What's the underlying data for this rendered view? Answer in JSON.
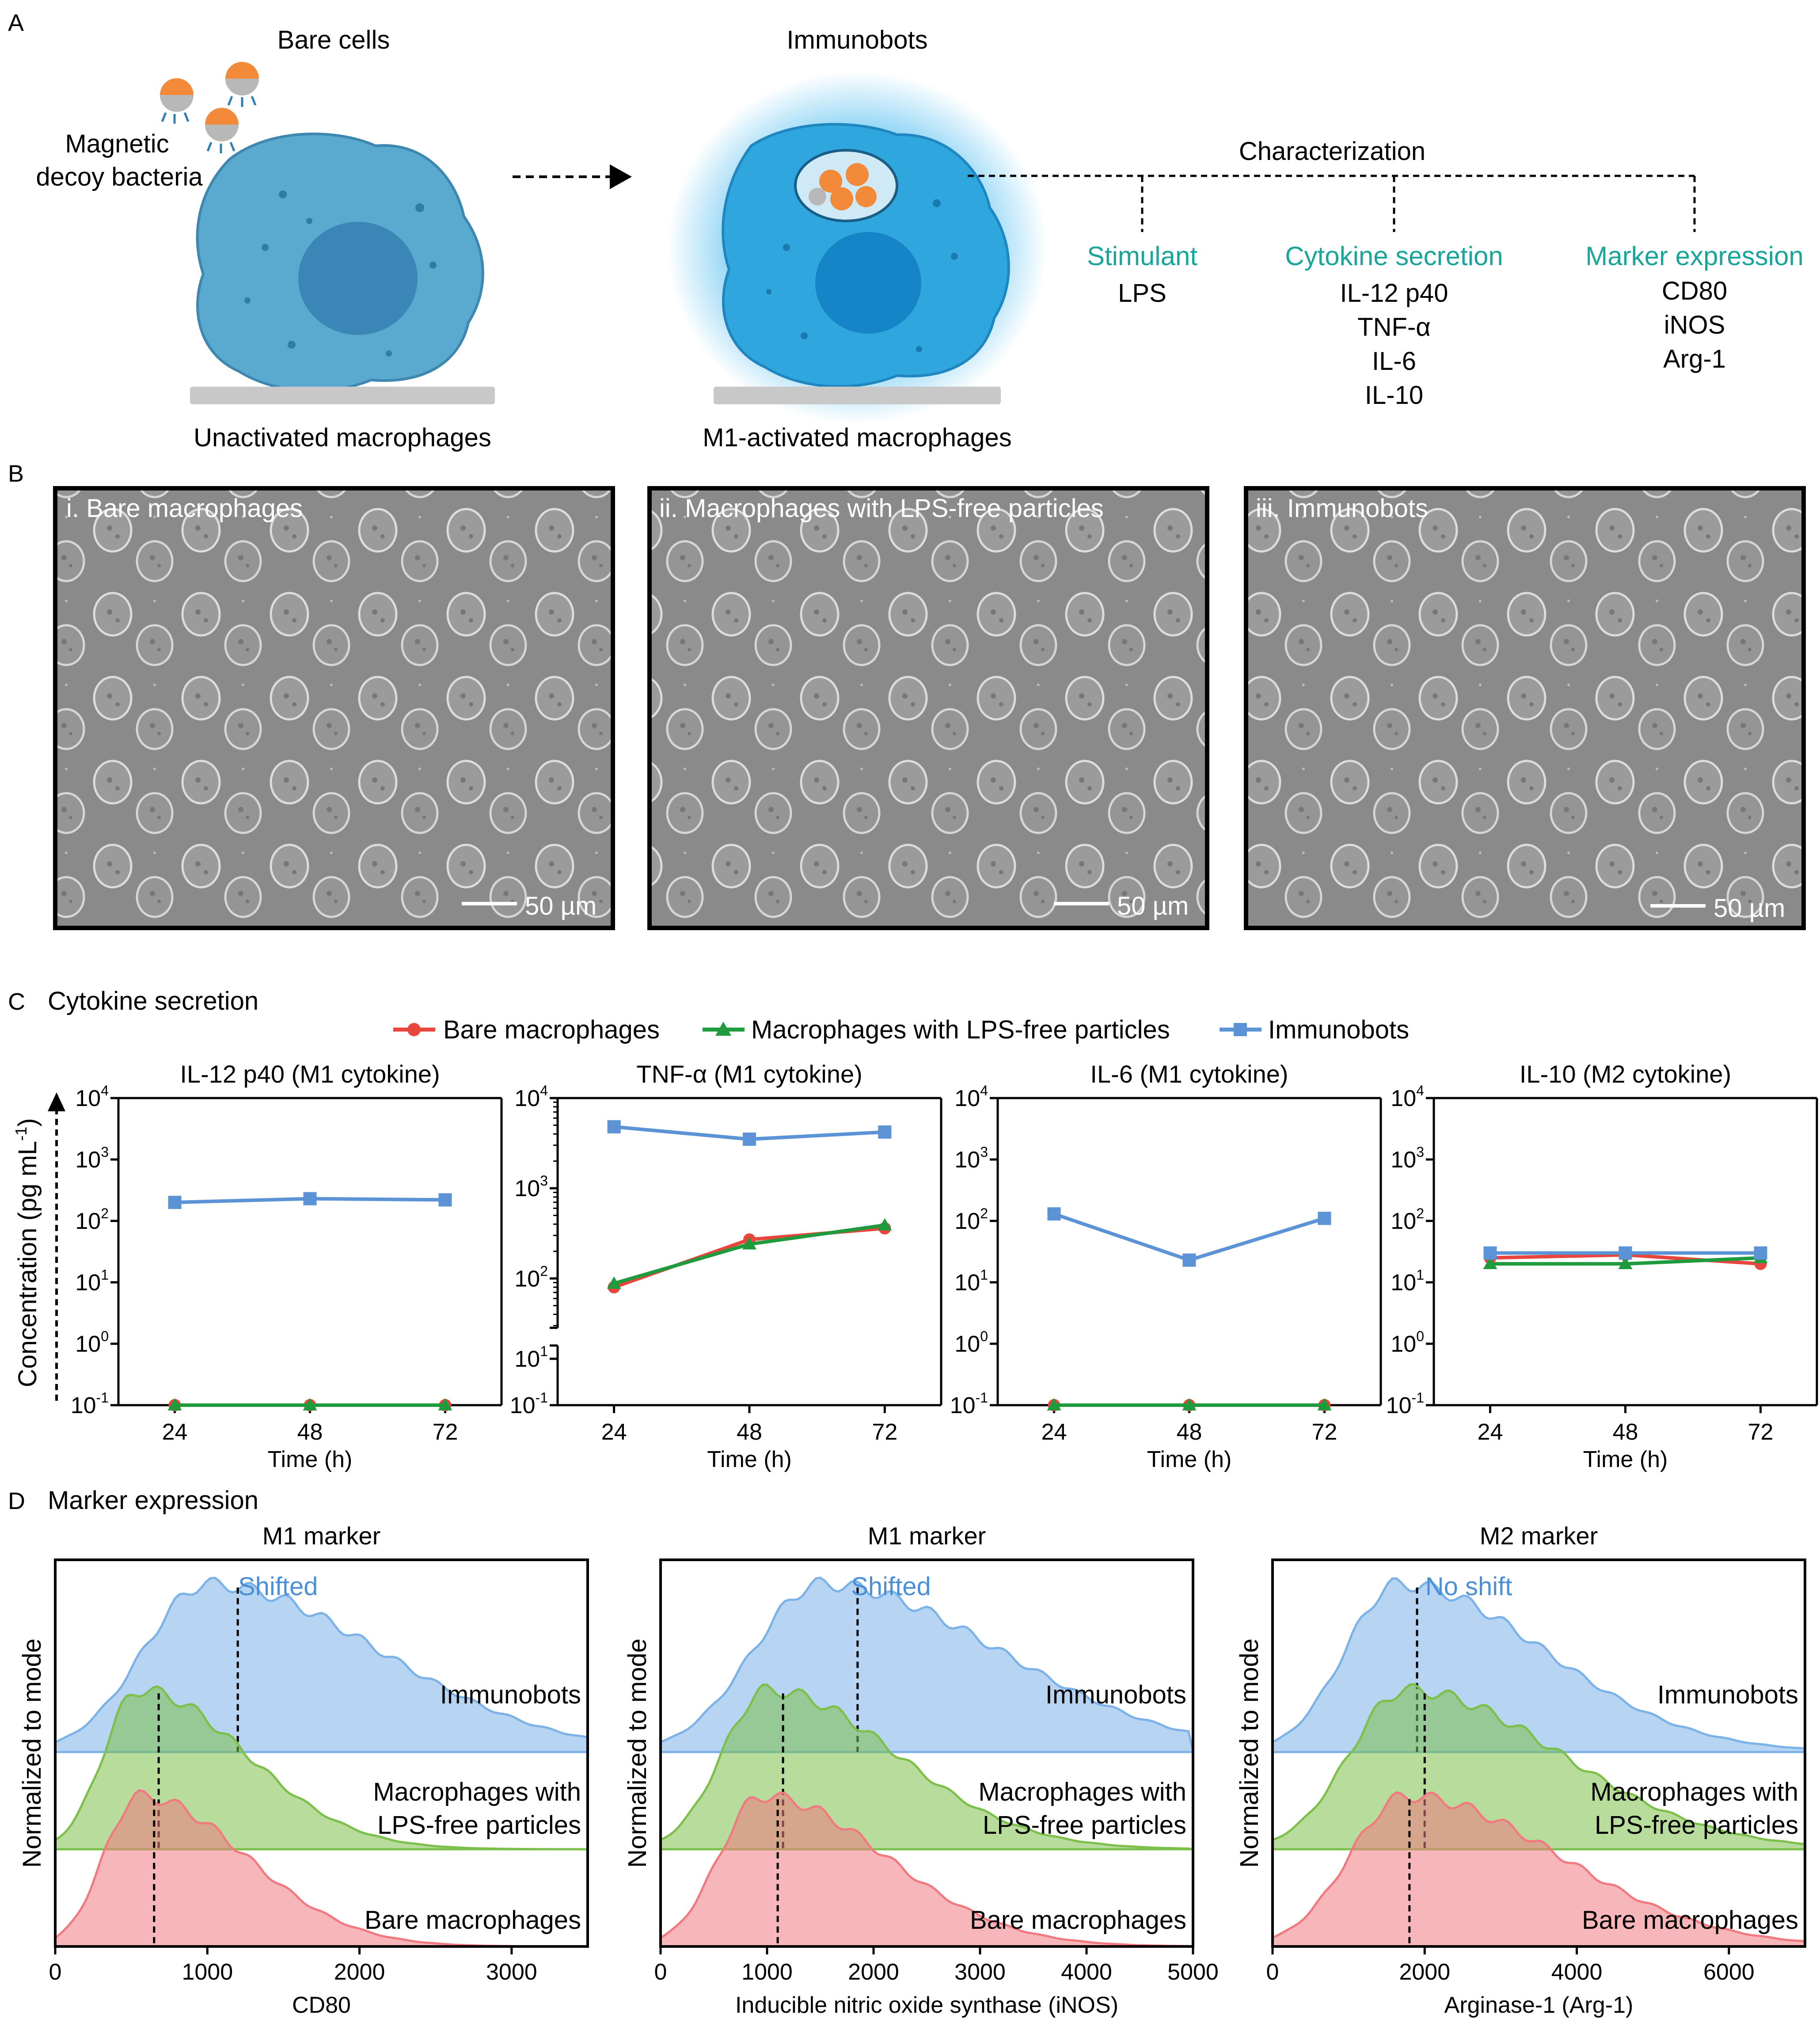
{
  "panelA": {
    "letter": "A",
    "bare_cells": "Bare cells",
    "decoy_line1": "Magnetic",
    "decoy_line2": "decoy bacteria",
    "immunobots": "Immunobots",
    "unactivated": "Unactivated macrophages",
    "activated": "M1-activated macrophages",
    "characterization": "Characterization",
    "stimulant_title": "Stimulant",
    "stimulant_items": [
      "LPS"
    ],
    "cytokine_title": "Cytokine secretion",
    "cytokine_items": [
      "IL-12 p40",
      "TNF-α",
      "IL-6",
      "IL-10"
    ],
    "marker_title": "Marker expression",
    "marker_items": [
      "CD80",
      "iNOS",
      "Arg-1"
    ],
    "colors": {
      "teal": "#1aa59a",
      "cell_bare": "#5aa9cf",
      "cell_active": "#2fa6dd"
    }
  },
  "panelB": {
    "letter": "B",
    "images": [
      {
        "caption": "i. Bare macrophages",
        "scale": "50 µm"
      },
      {
        "caption": "ii. Macrophages with LPS-free particles",
        "scale": "50 µm"
      },
      {
        "caption": "iii. Immunobots",
        "scale": "50 µm"
      }
    ]
  },
  "panelC": {
    "letter": "C",
    "title": "Cytokine secretion",
    "ylabel": "Concentration (pg mL-1)",
    "ylabel_main": "Concentration (pg mL",
    "ylabel_exp": "-1",
    "ylabel_close": ")",
    "xlabel": "Time (h)",
    "legend": [
      "Bare macrophages",
      "Macrophages with LPS-free particles",
      "Immunobots"
    ],
    "ytick_base": "10",
    "break_tick_exponents": [
      "1",
      "-1"
    ],
    "series_colors": [
      "#e8453c",
      "#1f9a3c",
      "#5b93d6"
    ]
  },
  "chart_data": [
    {
      "type": "line",
      "title": "IL-12 p40 (M1 cytokine)",
      "yscale": "log",
      "x": [
        24,
        48,
        72
      ],
      "ylim": [
        0.1,
        10000
      ],
      "yticks_exp": [
        -1,
        0,
        1,
        2,
        3,
        4
      ],
      "series": [
        {
          "name": "Bare macrophages",
          "values": [
            0.1,
            0.1,
            0.1
          ]
        },
        {
          "name": "Macrophages with LPS-free particles",
          "values": [
            0.1,
            0.1,
            0.1
          ]
        },
        {
          "name": "Immunobots",
          "values": [
            200,
            230,
            220
          ]
        }
      ]
    },
    {
      "type": "line",
      "title": "TNF-α (M1 cytokine)",
      "yscale": "log",
      "axis_break": true,
      "x": [
        24,
        48,
        72
      ],
      "ylim": [
        30,
        10000
      ],
      "yticks_exp": [
        2,
        3,
        4
      ],
      "series": [
        {
          "name": "Bare macrophages",
          "values": [
            80,
            270,
            360
          ]
        },
        {
          "name": "Macrophages with LPS-free particles",
          "values": [
            88,
            240,
            390
          ]
        },
        {
          "name": "Immunobots",
          "values": [
            4800,
            3500,
            4200
          ]
        }
      ]
    },
    {
      "type": "line",
      "title": "IL-6 (M1 cytokine)",
      "yscale": "log",
      "x": [
        24,
        48,
        72
      ],
      "ylim": [
        0.1,
        10000
      ],
      "yticks_exp": [
        -1,
        0,
        1,
        2,
        3,
        4
      ],
      "series": [
        {
          "name": "Bare macrophages",
          "values": [
            0.1,
            0.1,
            0.1
          ]
        },
        {
          "name": "Macrophages with LPS-free particles",
          "values": [
            0.1,
            0.1,
            0.1
          ]
        },
        {
          "name": "Immunobots",
          "values": [
            130,
            23,
            110
          ]
        }
      ]
    },
    {
      "type": "line",
      "title": "IL-10 (M2 cytokine)",
      "yscale": "log",
      "x": [
        24,
        48,
        72
      ],
      "ylim": [
        0.1,
        10000
      ],
      "yticks_exp": [
        -1,
        0,
        1,
        2,
        3,
        4
      ],
      "series": [
        {
          "name": "Bare macrophages",
          "values": [
            25,
            28,
            20
          ]
        },
        {
          "name": "Macrophages with LPS-free particles",
          "values": [
            20,
            20,
            25
          ]
        },
        {
          "name": "Immunobots",
          "values": [
            30,
            30,
            30
          ]
        }
      ]
    },
    {
      "type": "area",
      "title": "M1 marker",
      "xlabel": "CD80",
      "ylabel": "Normalized to mode",
      "xlim": [
        0,
        3500
      ],
      "xticks": [
        0,
        1000,
        2000,
        3000
      ],
      "shift_label": "Shifted",
      "series": [
        {
          "name": "Immunobots",
          "peak": 1000,
          "median": 1200
        },
        {
          "name": "Macrophages with LPS-free particles",
          "peak": 550,
          "median": 680
        },
        {
          "name": "Bare macrophages",
          "peak": 550,
          "median": 650
        }
      ]
    },
    {
      "type": "area",
      "title": "M1 marker",
      "xlabel": "Inducible nitric oxide synthase (iNOS)",
      "ylabel": "Normalized to mode",
      "xlim": [
        0,
        5000
      ],
      "xticks": [
        0,
        1000,
        2000,
        3000,
        4000,
        5000
      ],
      "shift_label": "Shifted",
      "series": [
        {
          "name": "Immunobots",
          "peak": 1500,
          "median": 1850
        },
        {
          "name": "Macrophages with LPS-free particles",
          "peak": 1000,
          "median": 1150
        },
        {
          "name": "Bare macrophages",
          "peak": 950,
          "median": 1100
        }
      ]
    },
    {
      "type": "area",
      "title": "M2 marker",
      "xlabel": "Arginase-1 (Arg-1)",
      "ylabel": "Normalized to mode",
      "xlim": [
        0,
        7000
      ],
      "xticks": [
        0,
        2000,
        4000,
        6000
      ],
      "shift_label": "No shift",
      "series": [
        {
          "name": "Immunobots",
          "peak": 1650,
          "median": 1900
        },
        {
          "name": "Macrophages with LPS-free particles",
          "peak": 1750,
          "median": 2000
        },
        {
          "name": "Bare macrophages",
          "peak": 1750,
          "median": 1800
        }
      ]
    }
  ],
  "panelD": {
    "letter": "D",
    "title": "Marker expression",
    "macro_line1": "Macrophages with",
    "macro_line2": "LPS-free particles",
    "colors": [
      "#7bb2e8",
      "#7cc04b",
      "#f07a80"
    ]
  }
}
